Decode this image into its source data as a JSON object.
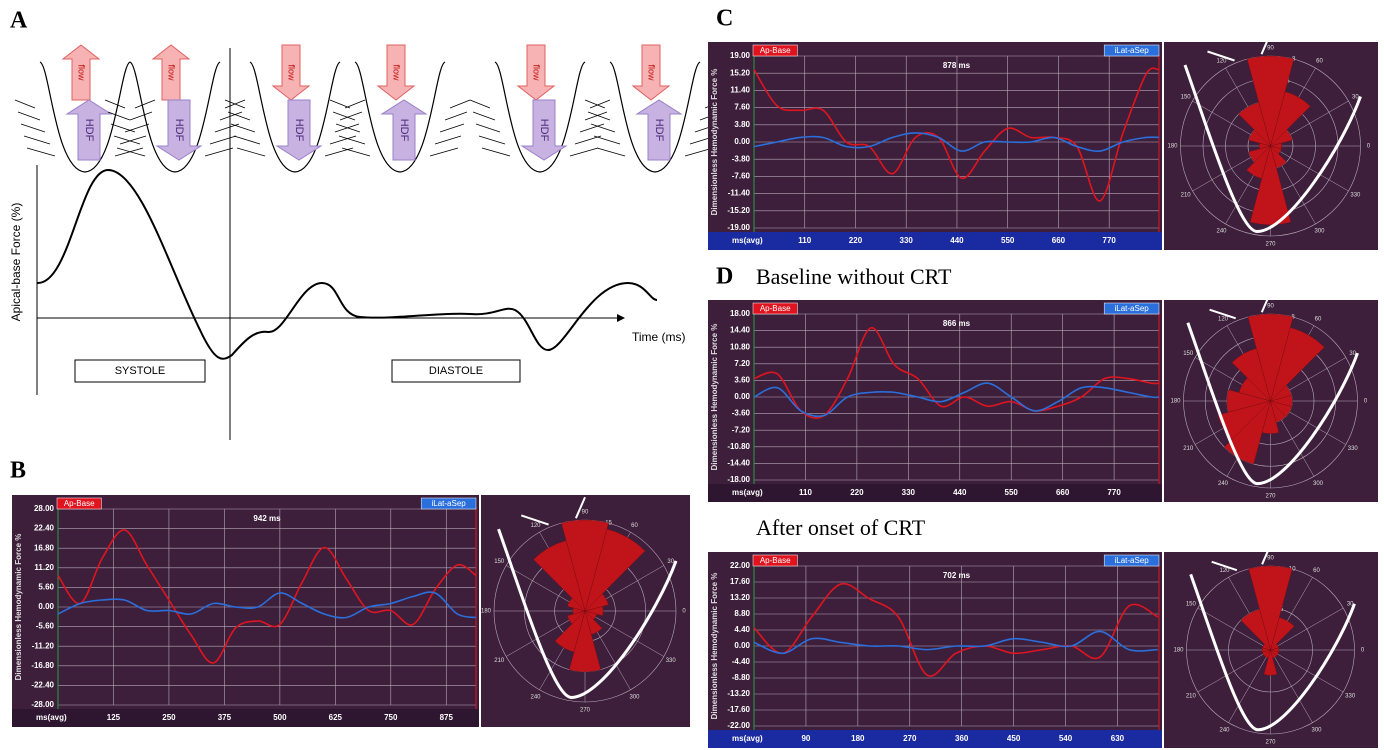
{
  "panels": {
    "a": {
      "label": "A",
      "y_label": "Apical-base Force (%)",
      "x_label": "Time (ms)",
      "phases": [
        "SYSTOLE",
        "DIASTOLE"
      ],
      "flow_label": "flow",
      "hdf_label": "HDF"
    },
    "b": {
      "label": "B"
    },
    "c": {
      "label": "C"
    },
    "d": {
      "label": "D",
      "subtitle": "Baseline without CRT",
      "subtitle_2": "After onset of CRT"
    }
  },
  "chart_data": [
    {
      "type": "line",
      "y_label": "Dimensionless Hemodynamic Force %",
      "x_label": "ms(avg)",
      "annotation": "942 ms",
      "background": "#3d1f3b",
      "axis_bar_color": "#2e1530",
      "grid": true,
      "x": [
        0,
        50,
        100,
        150,
        200,
        250,
        300,
        350,
        400,
        450,
        500,
        550,
        600,
        650,
        700,
        750,
        800,
        850,
        900,
        942
      ],
      "xlim": [
        0,
        942
      ],
      "xticks": [
        125,
        250,
        375,
        500,
        625,
        750,
        875
      ],
      "ylim": [
        -28,
        28
      ],
      "yticks": [
        {
          "value": 28,
          "label": "28.00"
        },
        {
          "value": 22.4,
          "label": "22.40"
        },
        {
          "value": 16.8,
          "label": "16.80"
        },
        {
          "value": 11.2,
          "label": "11.20"
        },
        {
          "value": 5.6,
          "label": "5.60"
        },
        {
          "value": 0,
          "label": "0.00"
        },
        {
          "value": -5.6,
          "label": "-5.60"
        },
        {
          "value": -11.2,
          "label": "-11.20"
        },
        {
          "value": -16.8,
          "label": "-16.80"
        },
        {
          "value": -22.4,
          "label": "-22.40"
        },
        {
          "value": -28,
          "label": "-28.00"
        }
      ],
      "series": [
        {
          "name": "Ap-Base",
          "color": "#e0141e",
          "values": [
            9,
            1,
            14,
            22,
            12,
            2,
            -8,
            -16,
            -6,
            -4,
            -5,
            7,
            17,
            8,
            -1,
            -1,
            -5,
            5,
            12,
            9
          ]
        },
        {
          "name": "iLat-aSep",
          "color": "#2a6fdc",
          "values": [
            -2,
            1,
            2,
            2,
            -1,
            -1,
            -2,
            1,
            0,
            0,
            4,
            1,
            -2,
            -3,
            0,
            1,
            3,
            4,
            -2,
            -3
          ]
        }
      ],
      "polar": {
        "angles": [
          0,
          30,
          60,
          90,
          120,
          150,
          180,
          210,
          240,
          270,
          300,
          330
        ],
        "values": [
          3,
          4,
          14,
          15,
          12,
          3,
          2,
          3,
          7,
          10,
          4,
          2
        ],
        "color": "#c0141a",
        "rlim": [
          0,
          15
        ],
        "rticks": [
          5,
          10,
          15
        ]
      }
    },
    {
      "type": "line",
      "y_label": "Dimensionless Hemodynamic Force %",
      "x_label": "ms(avg)",
      "annotation": "878 ms",
      "background": "#3d1f3b",
      "axis_bar_color": "#1a2aa0",
      "grid": true,
      "x": [
        0,
        50,
        100,
        150,
        200,
        250,
        300,
        350,
        400,
        450,
        500,
        550,
        600,
        650,
        700,
        750,
        800,
        850,
        878
      ],
      "xlim": [
        0,
        878
      ],
      "xticks": [
        110,
        220,
        330,
        440,
        550,
        660,
        770
      ],
      "ylim": [
        -19,
        19
      ],
      "yticks": [
        {
          "value": 19,
          "label": "19.00"
        },
        {
          "value": 15.2,
          "label": "15.20"
        },
        {
          "value": 11.4,
          "label": "11.40"
        },
        {
          "value": 7.6,
          "label": "7.60"
        },
        {
          "value": 3.8,
          "label": "3.80"
        },
        {
          "value": 0,
          "label": "0.00"
        },
        {
          "value": -3.8,
          "label": "-3.80"
        },
        {
          "value": -7.6,
          "label": "-7.60"
        },
        {
          "value": -11.4,
          "label": "-11.40"
        },
        {
          "value": -15.2,
          "label": "-15.20"
        },
        {
          "value": -19,
          "label": "-19.00"
        }
      ],
      "series": [
        {
          "name": "Ap-Base",
          "color": "#e0141e",
          "values": [
            16,
            8,
            7,
            7,
            0,
            -1,
            -7,
            1,
            1,
            -8,
            -2,
            3,
            1,
            1,
            -1,
            -13,
            2,
            15,
            16
          ]
        },
        {
          "name": "iLat-aSep",
          "color": "#2a6fdc",
          "values": [
            -1,
            0,
            1,
            1,
            -1,
            -1,
            1,
            2,
            1,
            -2,
            0,
            0,
            0,
            1,
            -1,
            -2,
            0,
            1,
            1
          ]
        }
      ],
      "polar": {
        "angles": [
          0,
          30,
          60,
          90,
          120,
          150,
          180,
          210,
          240,
          270,
          300,
          330
        ],
        "values": [
          1,
          2,
          5,
          8,
          4,
          2,
          1,
          2,
          3,
          7,
          2,
          1
        ],
        "color": "#c0141a",
        "rlim": [
          0,
          8
        ],
        "rticks": [
          2,
          4,
          6,
          8
        ]
      }
    },
    {
      "type": "line",
      "y_label": "Dimensionless Hemodynamic Force %",
      "x_label": "ms(avg)",
      "annotation": "866 ms",
      "background": "#3d1f3b",
      "axis_bar_color": "#2e1530",
      "grid": true,
      "x": [
        0,
        50,
        100,
        150,
        200,
        250,
        300,
        350,
        400,
        450,
        500,
        550,
        600,
        650,
        700,
        750,
        800,
        850,
        866
      ],
      "xlim": [
        0,
        866
      ],
      "xticks": [
        110,
        220,
        330,
        440,
        550,
        660,
        770
      ],
      "ylim": [
        -18,
        18
      ],
      "yticks": [
        {
          "value": 18,
          "label": "18.00"
        },
        {
          "value": 14.4,
          "label": "14.40"
        },
        {
          "value": 10.8,
          "label": "10.80"
        },
        {
          "value": 7.2,
          "label": "7.20"
        },
        {
          "value": 3.6,
          "label": "3.60"
        },
        {
          "value": 0,
          "label": "0.00"
        },
        {
          "value": -3.6,
          "label": "-3.60"
        },
        {
          "value": -7.2,
          "label": "-7.20"
        },
        {
          "value": -10.8,
          "label": "-10.80"
        },
        {
          "value": -14.4,
          "label": "-14.40"
        },
        {
          "value": -18,
          "label": "-18.00"
        }
      ],
      "series": [
        {
          "name": "Ap-Base",
          "color": "#e0141e",
          "values": [
            4,
            5,
            -3,
            -4,
            4,
            15,
            7,
            4,
            -2,
            0,
            -2,
            -1,
            -3,
            -2,
            0,
            4,
            4,
            3,
            3
          ]
        },
        {
          "name": "iLat-aSep",
          "color": "#2a6fdc",
          "values": [
            0,
            2,
            -3,
            -4,
            0,
            1,
            1,
            0,
            -1,
            1,
            3,
            0,
            -3,
            -1,
            2,
            2,
            1,
            0,
            0
          ]
        }
      ],
      "polar": {
        "angles": [
          0,
          30,
          60,
          90,
          120,
          150,
          180,
          210,
          240,
          270,
          300,
          330
        ],
        "values": [
          2,
          2,
          7,
          8,
          5,
          3,
          4,
          5,
          6,
          3,
          2,
          2
        ],
        "color": "#c0141a",
        "rlim": [
          0,
          8
        ],
        "rticks": [
          2,
          4,
          6,
          8
        ]
      }
    },
    {
      "type": "line",
      "y_label": "Dimensionless Hemodynamic Force %",
      "x_label": "ms(avg)",
      "annotation": "702 ms",
      "background": "#3d1f3b",
      "axis_bar_color": "#1a2aa0",
      "grid": true,
      "x": [
        0,
        50,
        100,
        150,
        200,
        250,
        300,
        350,
        400,
        450,
        500,
        550,
        600,
        650,
        700
      ],
      "xlim": [
        0,
        702
      ],
      "xticks": [
        90,
        180,
        270,
        360,
        450,
        540,
        630
      ],
      "ylim": [
        -22,
        22
      ],
      "yticks": [
        {
          "value": 22,
          "label": "22.00"
        },
        {
          "value": 17.6,
          "label": "17.60"
        },
        {
          "value": 13.2,
          "label": "13.20"
        },
        {
          "value": 8.8,
          "label": "8.80"
        },
        {
          "value": 4.4,
          "label": "4.40"
        },
        {
          "value": 0,
          "label": "0.00"
        },
        {
          "value": -4.4,
          "label": "-4.40"
        },
        {
          "value": -8.8,
          "label": "-8.80"
        },
        {
          "value": -13.2,
          "label": "-13.20"
        },
        {
          "value": -17.6,
          "label": "-17.60"
        },
        {
          "value": -22,
          "label": "-22.00"
        }
      ],
      "series": [
        {
          "name": "Ap-Base",
          "color": "#e0141e",
          "values": [
            5,
            -2,
            8,
            17,
            13,
            8,
            -8,
            -2,
            0,
            -2,
            -1,
            0,
            -3,
            11,
            8
          ]
        },
        {
          "name": "iLat-aSep",
          "color": "#2a6fdc",
          "values": [
            1,
            -2,
            2,
            1,
            0,
            0,
            -1,
            0,
            0,
            2,
            1,
            0,
            4,
            -1,
            -1
          ]
        }
      ],
      "polar": {
        "angles": [
          0,
          30,
          60,
          90,
          120,
          150,
          180,
          210,
          240,
          270,
          300,
          330
        ],
        "values": [
          1,
          1,
          4,
          10,
          5,
          1,
          1,
          1,
          1,
          3,
          1,
          1
        ],
        "color": "#c0141a",
        "rlim": [
          0,
          10
        ],
        "rticks": [
          5,
          10
        ]
      }
    }
  ]
}
